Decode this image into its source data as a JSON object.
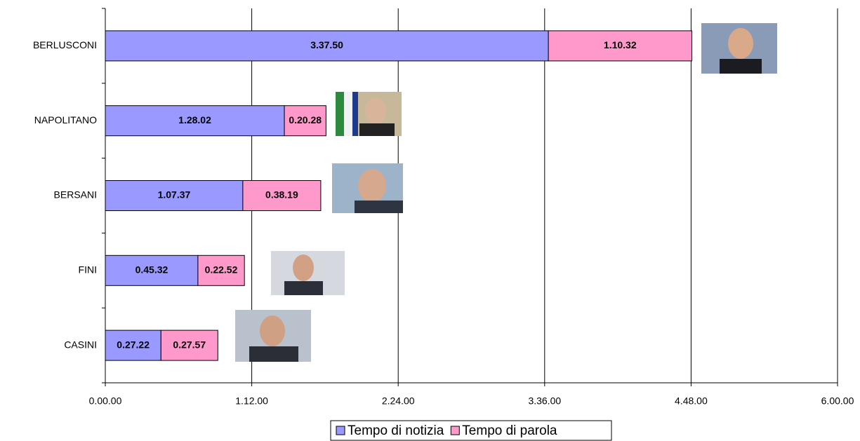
{
  "chart_data": {
    "type": "bar",
    "orientation": "horizontal",
    "stacked": true,
    "categories": [
      "BERLUSCONI",
      "NAPOLITANO",
      "BERSANI",
      "FINI",
      "CASINI"
    ],
    "series": [
      {
        "name": "Tempo di notizia",
        "color": "#9999ff",
        "values": [
          13070,
          5282,
          4057,
          2732,
          1642
        ],
        "value_labels": [
          "3.37.50",
          "1.28.02",
          "1.07.37",
          "0.45.32",
          "0.27.22"
        ]
      },
      {
        "name": "Tempo di parola",
        "color": "#ff99cc",
        "values": [
          4232,
          1228,
          2299,
          1372,
          1677
        ],
        "value_labels": [
          "1.10.32",
          "0.20.28",
          "0.38.19",
          "0.22.52",
          "0.27.57"
        ]
      }
    ],
    "xlim": [
      0,
      21600
    ],
    "xticks": [
      {
        "value": 0,
        "label": "0.00.00"
      },
      {
        "value": 4320,
        "label": "1.12.00"
      },
      {
        "value": 8640,
        "label": "2.24.00"
      },
      {
        "value": 12960,
        "label": "3.36.00"
      },
      {
        "value": 17280,
        "label": "4.48.00"
      },
      {
        "value": 21600,
        "label": "6.00.00"
      }
    ],
    "grid": true,
    "legend": "bottom"
  }
}
